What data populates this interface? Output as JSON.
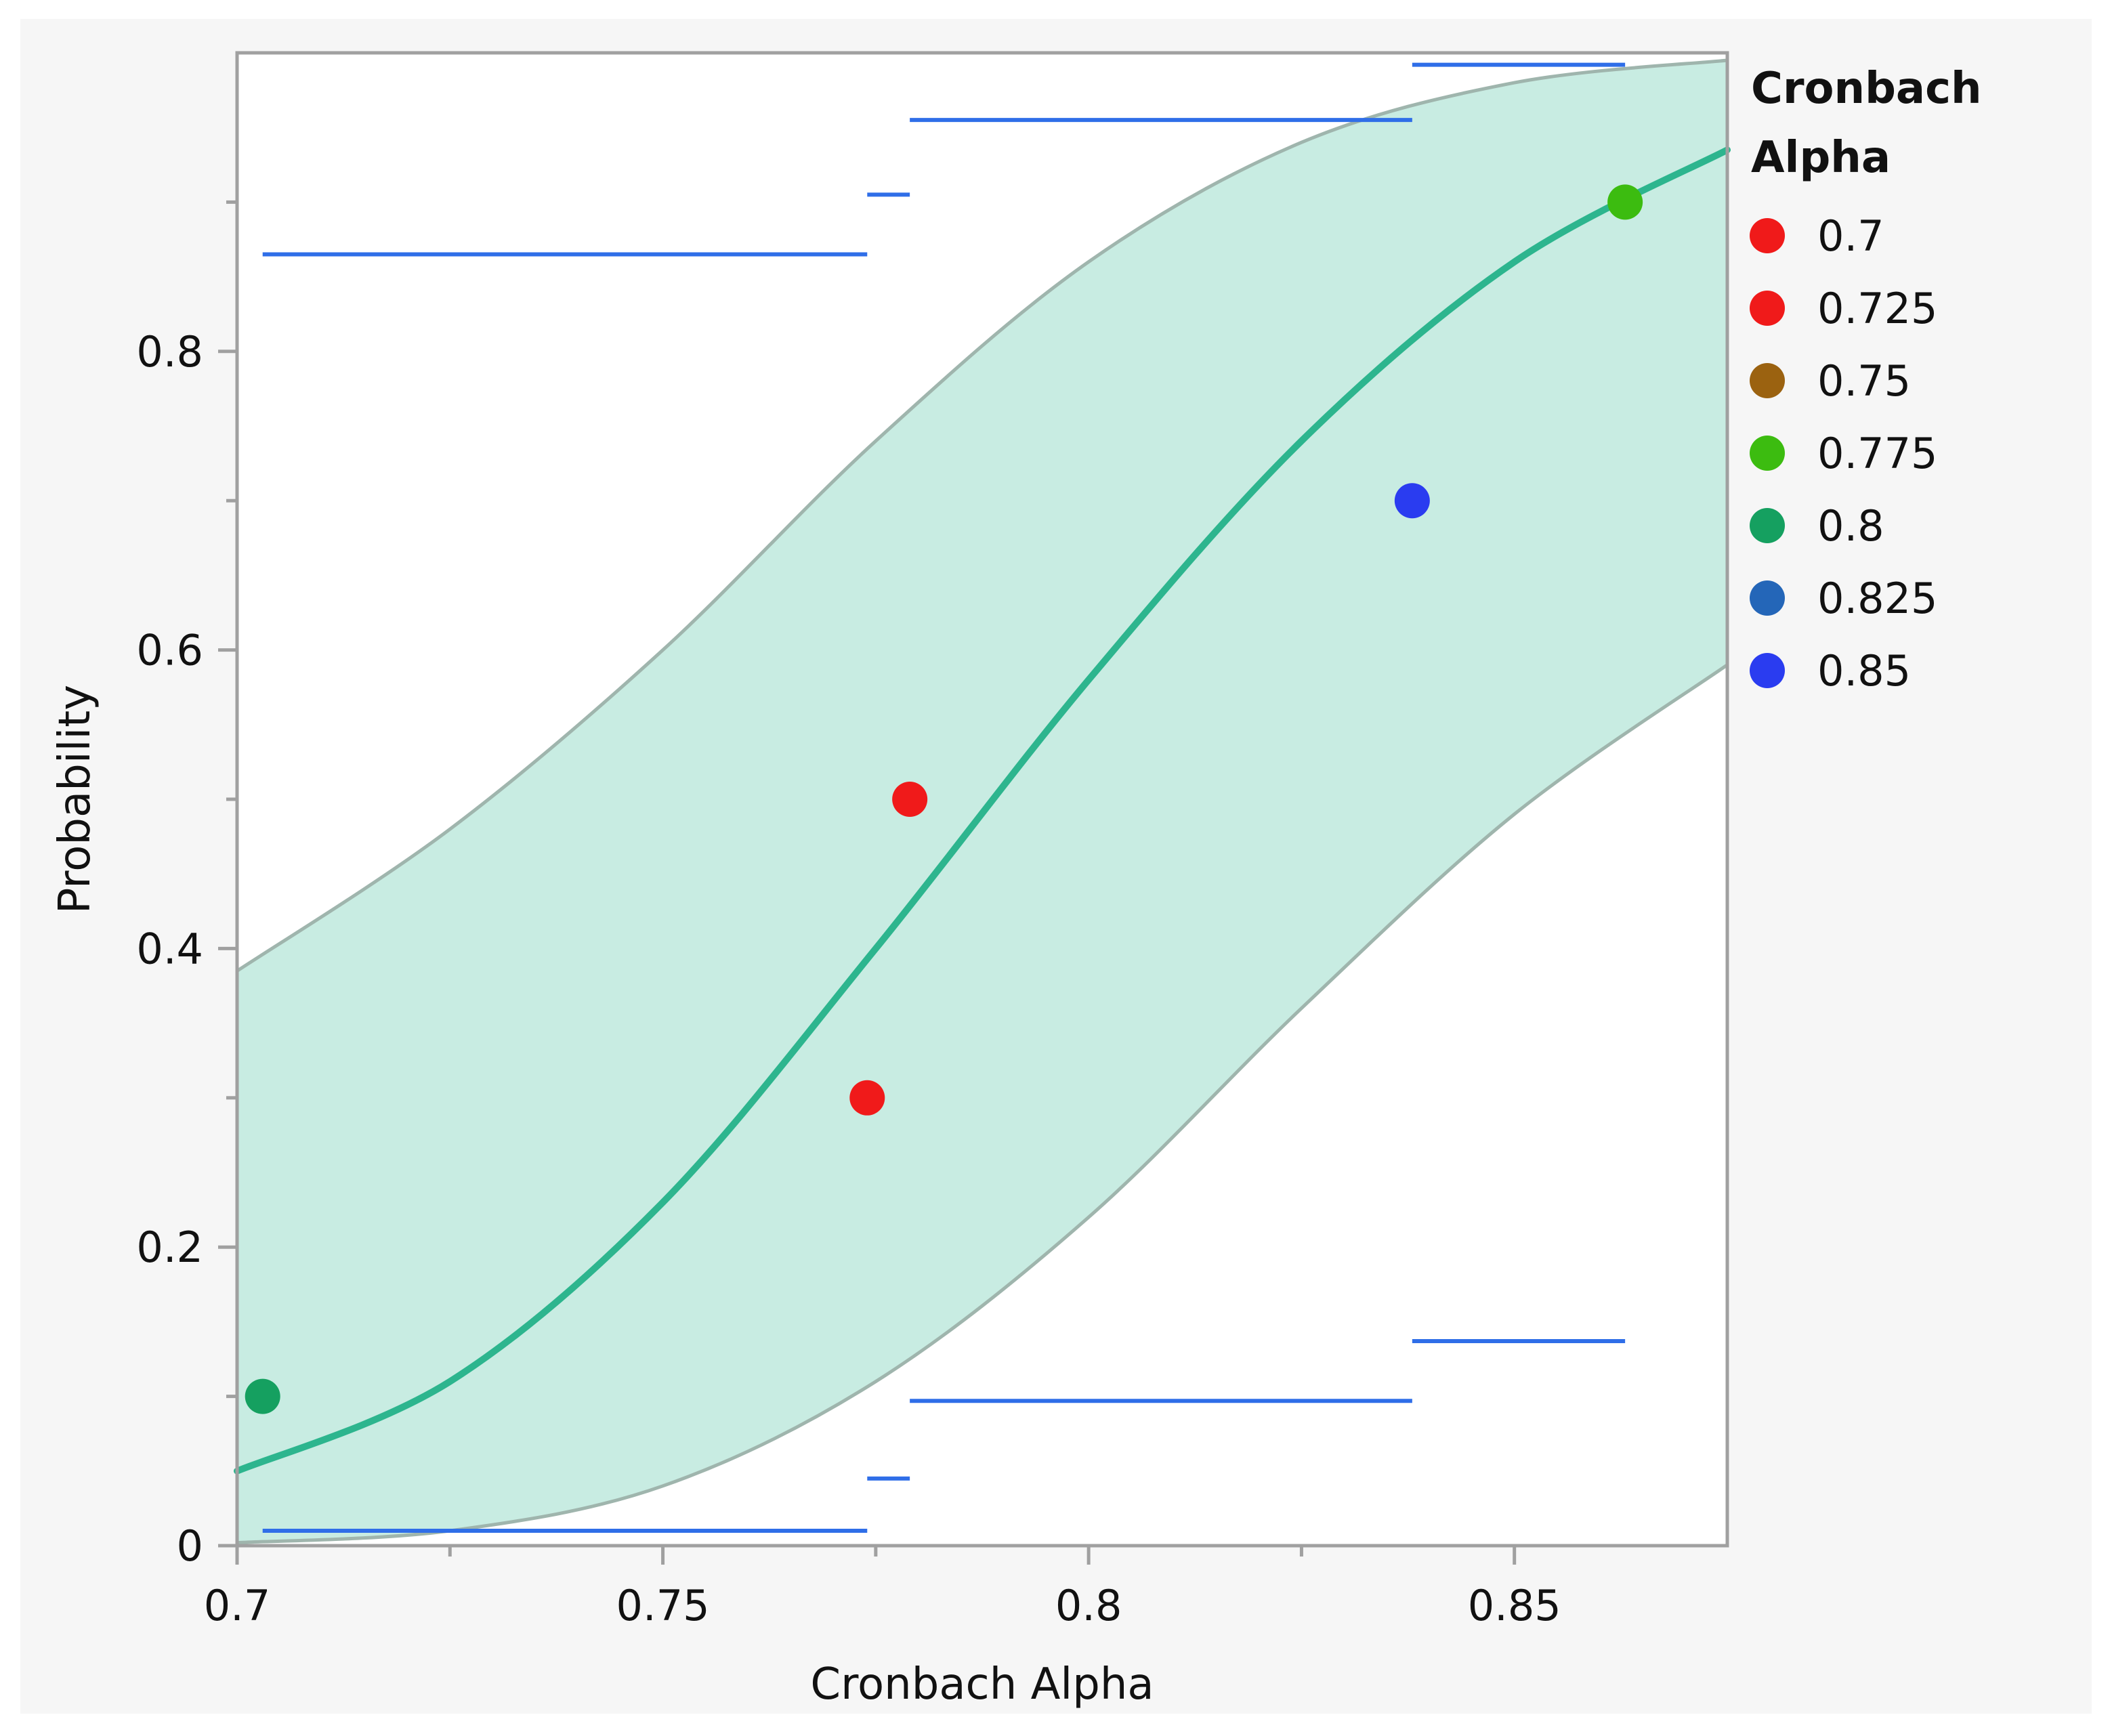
{
  "chart_data": {
    "type": "scatter",
    "title": "",
    "xlabel": "Cronbach Alpha",
    "ylabel": "Probability",
    "xlim": [
      0.7,
      0.875
    ],
    "ylim": [
      0,
      1
    ],
    "x_ticks": [
      {
        "value": 0.7,
        "label": "0.7"
      },
      {
        "value": 0.75,
        "label": "0.75"
      },
      {
        "value": 0.8,
        "label": "0.8"
      },
      {
        "value": 0.85,
        "label": "0.85"
      }
    ],
    "x_minor_ticks": [
      0.725,
      0.775,
      0.825
    ],
    "y_ticks": [
      {
        "value": 0,
        "label": "0"
      },
      {
        "value": 0.2,
        "label": "0.2"
      },
      {
        "value": 0.4,
        "label": "0.4"
      },
      {
        "value": 0.6,
        "label": "0.6"
      },
      {
        "value": 0.8,
        "label": "0.8"
      }
    ],
    "y_minor_ticks": [
      0.1,
      0.3,
      0.5,
      0.7,
      0.9
    ],
    "legend": {
      "title": "Cronbach Alpha",
      "position": "right",
      "entries": [
        {
          "label": "0.7",
          "color": "#f01a1a"
        },
        {
          "label": "0.725",
          "color": "#f01a1a"
        },
        {
          "label": "0.75",
          "color": "#9b6210"
        },
        {
          "label": "0.775",
          "color": "#3cbc10"
        },
        {
          "label": "0.8",
          "color": "#15a060"
        },
        {
          "label": "0.825",
          "color": "#2466b8"
        },
        {
          "label": "0.85",
          "color": "#2a3cf0"
        }
      ]
    },
    "points": [
      {
        "x": 0.703,
        "y": 0.1,
        "color": "#15a060"
      },
      {
        "x": 0.774,
        "y": 0.3,
        "color": "#f01a1a"
      },
      {
        "x": 0.779,
        "y": 0.5,
        "color": "#f01a1a"
      },
      {
        "x": 0.838,
        "y": 0.7,
        "color": "#2a3cf0"
      },
      {
        "x": 0.863,
        "y": 0.9,
        "color": "#3cbc10"
      }
    ],
    "fit": {
      "type": "logistic",
      "color": "#2db58e",
      "curve": [
        {
          "x": 0.7,
          "y": 0.05
        },
        {
          "x": 0.725,
          "y": 0.11
        },
        {
          "x": 0.75,
          "y": 0.23
        },
        {
          "x": 0.775,
          "y": 0.4
        },
        {
          "x": 0.8,
          "y": 0.58
        },
        {
          "x": 0.825,
          "y": 0.74
        },
        {
          "x": 0.85,
          "y": 0.86
        },
        {
          "x": 0.875,
          "y": 0.935
        }
      ],
      "band_color": "#c8ece2",
      "band_upper": [
        {
          "x": 0.7,
          "y": 0.385
        },
        {
          "x": 0.725,
          "y": 0.48
        },
        {
          "x": 0.75,
          "y": 0.6
        },
        {
          "x": 0.775,
          "y": 0.74
        },
        {
          "x": 0.8,
          "y": 0.86
        },
        {
          "x": 0.825,
          "y": 0.94
        },
        {
          "x": 0.85,
          "y": 0.98
        },
        {
          "x": 0.875,
          "y": 0.995
        }
      ],
      "band_lower": [
        {
          "x": 0.7,
          "y": 0.002
        },
        {
          "x": 0.725,
          "y": 0.01
        },
        {
          "x": 0.75,
          "y": 0.04
        },
        {
          "x": 0.775,
          "y": 0.11
        },
        {
          "x": 0.8,
          "y": 0.22
        },
        {
          "x": 0.825,
          "y": 0.36
        },
        {
          "x": 0.85,
          "y": 0.49
        },
        {
          "x": 0.875,
          "y": 0.59
        }
      ]
    },
    "interval_segments": {
      "color": "#2f6ee8",
      "segments": [
        {
          "x0": 0.703,
          "x1": 0.774,
          "y": 0.865
        },
        {
          "x0": 0.703,
          "x1": 0.774,
          "y": 0.01
        },
        {
          "x0": 0.774,
          "x1": 0.779,
          "y": 0.905
        },
        {
          "x0": 0.774,
          "x1": 0.779,
          "y": 0.045
        },
        {
          "x0": 0.779,
          "x1": 0.838,
          "y": 0.955
        },
        {
          "x0": 0.779,
          "x1": 0.838,
          "y": 0.097
        },
        {
          "x0": 0.838,
          "x1": 0.863,
          "y": 0.992
        },
        {
          "x0": 0.838,
          "x1": 0.863,
          "y": 0.137
        }
      ]
    }
  }
}
